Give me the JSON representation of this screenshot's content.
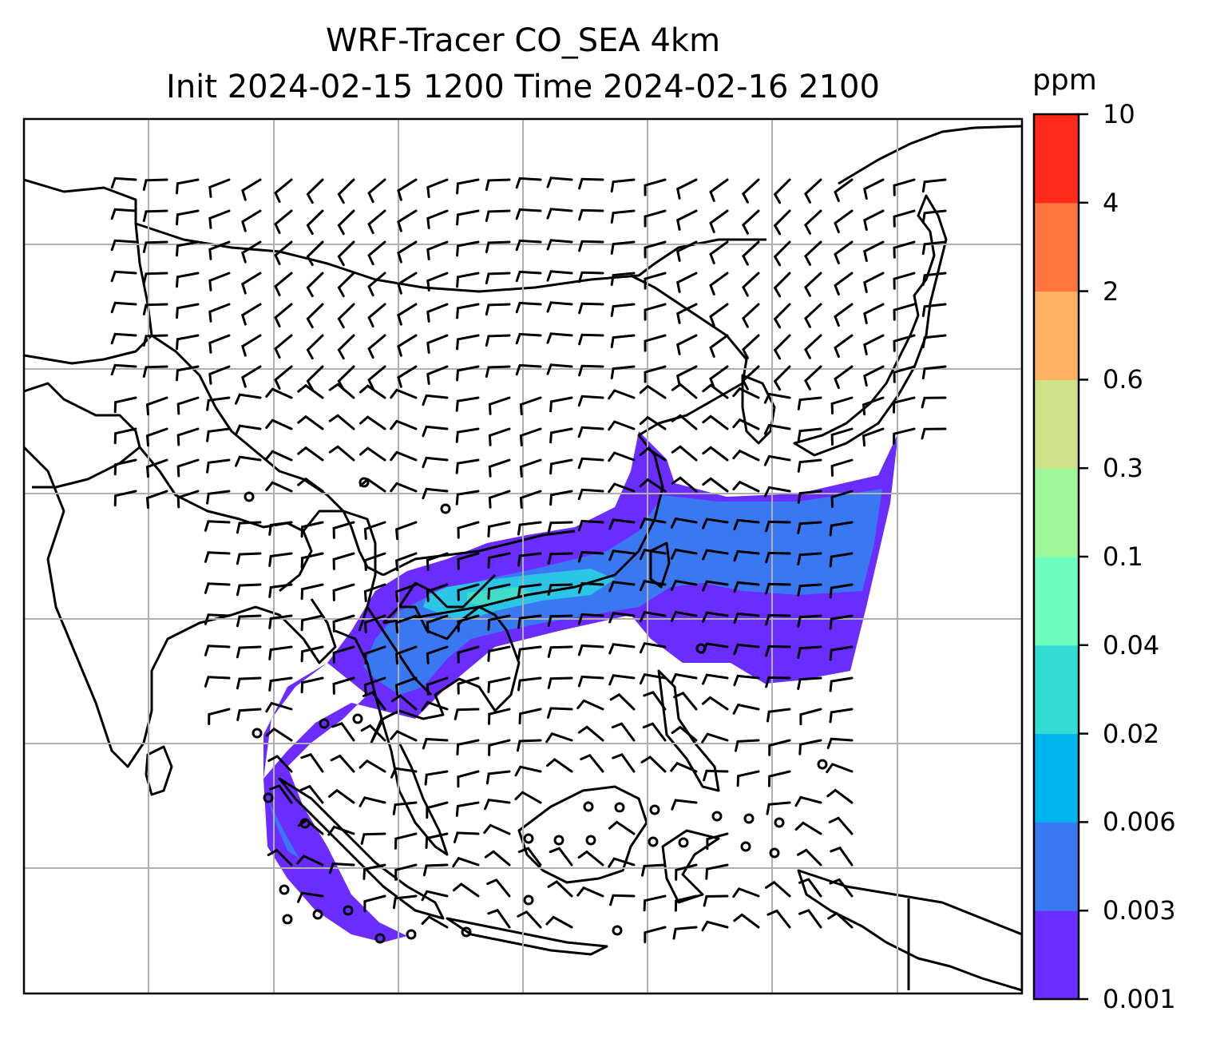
{
  "title": {
    "line1": "WRF-Tracer CO_SEA 4km",
    "line2": "Init 2024-02-15 1200 Time 2024-02-16 2100"
  },
  "colorbar": {
    "unit": "ppm",
    "levels": [
      "0.001",
      "0.003",
      "0.006",
      "0.02",
      "0.04",
      "0.1",
      "0.3",
      "0.6",
      "2",
      "4",
      "10"
    ],
    "colors": [
      "#6a2cff",
      "#3a78f2",
      "#00b5ee",
      "#34ddd4",
      "#6effc0",
      "#9ef89a",
      "#cfe28a",
      "#ffb163",
      "#ff7540",
      "#ff2a1a"
    ]
  },
  "map": {
    "projection": "regional map of Southeast / East Asia",
    "gridlines": true,
    "plume_colors": {
      "low": "#6a2cff",
      "mid": "#3a78f2",
      "high": "#2bc6e6",
      "core": "#40dcc8"
    },
    "coastline_color": "#000000",
    "wind_barbs_color": "#000000",
    "gridline_color": "#b0b0b0"
  }
}
